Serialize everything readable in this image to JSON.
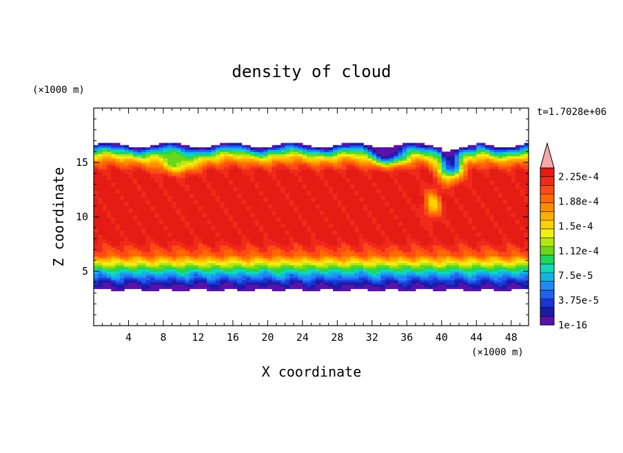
{
  "chart_data": {
    "type": "heatmap",
    "title": "density of cloud",
    "xlabel": "X coordinate",
    "ylabel": "Z coordinate",
    "x_unit": "(×1000 m)",
    "y_unit": "(×1000 m)",
    "time_label": "t=1.7028e+06",
    "xlim": [
      0,
      50
    ],
    "ylim": [
      0,
      20
    ],
    "x_ticks": [
      4,
      8,
      12,
      16,
      20,
      24,
      28,
      32,
      36,
      40,
      44,
      48
    ],
    "y_ticks": [
      5,
      10,
      15
    ],
    "colorbar": {
      "labels": [
        "1e-16",
        "3.75e-5",
        "7.5e-5",
        "1.12e-4",
        "1.5e-4",
        "1.88e-4",
        "2.25e-4"
      ],
      "colors": [
        "#5a12a8",
        "#1a1aa6",
        "#1a35d6",
        "#1f60ee",
        "#1f8cf2",
        "#12b4e6",
        "#14d8b8",
        "#1ed65a",
        "#6ad61a",
        "#b4e614",
        "#f0f014",
        "#ffd200",
        "#ffae00",
        "#ff8c00",
        "#ff6a00",
        "#ff4a14",
        "#f02a1a",
        "#e41c14"
      ],
      "extend_color": "#f5a8a8"
    },
    "field": {
      "cloud_base_km": 3.3,
      "cloud_top_km": 16.6,
      "core_min_km": 8.0,
      "core_max_km": 13.5,
      "max_value": 0.00024
    }
  }
}
